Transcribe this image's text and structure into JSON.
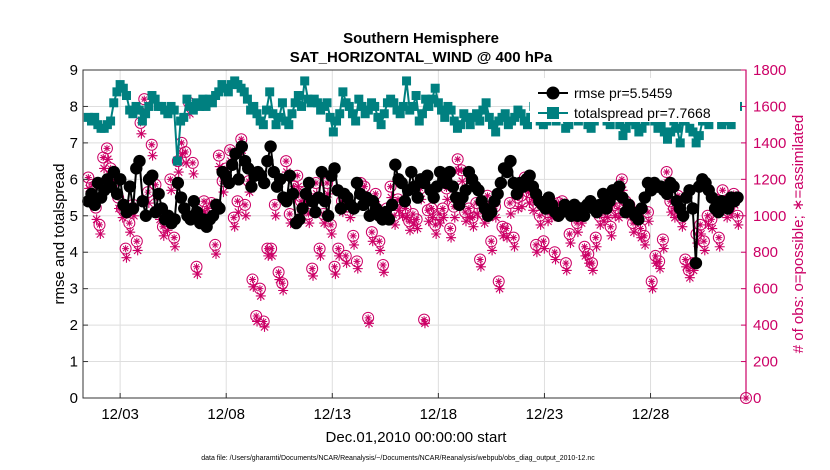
{
  "chart_data": {
    "type": "line",
    "title": "Southern Hemisphere",
    "subtitle": "SAT_HORIZONTAL_WIND @ 400 hPa",
    "xlabel": "Dec.01,2010 00:00:00 start",
    "ylabel_left": "rmse and totalspread",
    "ylabel_right": "# of obs: o=possible; ∗=assimilated",
    "footnote": "data file: /Users/gharamti/Documents/NCAR/Reanalysis/~/Documents/NCAR/Reanalysis/webpub/obs_diag_output_2010-12.nc",
    "xlim": [
      1.25,
      32.5
    ],
    "ylim_left": [
      0,
      9
    ],
    "ylim_right": [
      0,
      1800
    ],
    "x_ticks": [
      3,
      8,
      13,
      18,
      23,
      28
    ],
    "x_tick_labels": [
      "12/03",
      "12/08",
      "12/13",
      "12/18",
      "12/23",
      "12/28"
    ],
    "y_ticks_left": [
      "0",
      "1",
      "2",
      "3",
      "4",
      "5",
      "6",
      "7",
      "8",
      "9"
    ],
    "y_ticks_right": [
      "0",
      "200",
      "400",
      "600",
      "800",
      "1000",
      "1200",
      "1400",
      "1600",
      "1800"
    ],
    "grid": true,
    "legend_position": "top-right",
    "colors": {
      "rmse": "#000000",
      "totalspread": "#008080",
      "obs": "#cc0066",
      "grid": "#dedede"
    },
    "series": [
      {
        "name": "rmse",
        "legend_label": "rmse pr=5.5459",
        "axis": "left",
        "values": [
          5.4,
          5.6,
          5.3,
          5.9,
          5.5,
          5.7,
          6.0,
          5.8,
          6.2,
          5.6,
          6.0,
          5.3,
          5.1,
          5.8,
          5.2,
          6.3,
          6.5,
          5.4,
          5.0,
          6.0,
          6.1,
          5.1,
          5.6,
          5.2,
          4.9,
          5.0,
          4.8,
          4.9,
          5.9,
          5.5,
          5.2,
          5.0,
          4.9,
          5.4,
          5.1,
          4.8,
          4.9,
          4.7,
          4.9,
          5.0,
          5.3,
          5.2,
          6.2,
          6.1,
          5.9,
          6.4,
          6.7,
          6.0,
          6.9,
          6.5,
          6.3,
          5.8,
          6.1,
          6.2,
          6.1,
          5.9,
          6.5,
          6.9,
          6.2,
          5.8,
          6.0,
          5.5,
          5.4,
          6.1,
          5.6,
          4.8,
          4.9,
          5.2,
          5.6,
          5.9,
          5.4,
          5.1,
          5.5,
          6.2,
          5.4,
          5.0,
          6.1,
          6.3,
          5.7,
          5.2,
          5.6,
          5.5,
          5.3,
          5.2,
          5.9,
          5.6,
          5.3,
          5.5,
          5.0,
          5.4,
          5.2,
          5.0,
          4.9,
          5.1,
          4.9,
          5.3,
          6.4,
          6.0,
          5.9,
          5.4,
          5.7,
          6.2,
          5.8,
          5.5,
          6.0,
          5.9,
          6.1,
          5.7,
          5.5,
          5.8,
          6.2,
          6.0,
          5.9,
          6.2,
          5.8,
          5.5,
          5.3,
          5.5,
          5.7,
          6.2,
          6.0,
          5.8,
          5.7,
          5.4,
          5.2,
          5.0,
          5.1,
          5.4,
          5.6,
          5.9,
          6.3,
          6.2,
          6.5,
          5.9,
          5.6,
          5.9,
          5.8,
          6.0,
          6.1,
          5.8,
          5.6,
          5.4,
          5.3,
          5.2,
          5.5,
          5.3,
          5.1,
          5.0,
          5.1,
          5.3,
          5.2,
          5.0,
          5.3,
          5.0,
          5.2,
          5.0,
          5.3,
          5.4,
          5.2,
          5.1,
          5.3,
          5.6,
          5.2,
          5.4,
          5.7,
          5.6,
          5.8,
          5.5,
          5.1,
          5.3,
          5.1,
          5.0,
          4.9,
          5.2,
          5.5,
          5.9,
          5.7,
          5.9,
          5.8,
          5.8,
          5.7,
          5.6,
          5.9,
          5.8,
          5.4,
          5.2,
          5.0,
          5.5,
          5.7,
          5.2,
          3.7,
          5.8,
          6.0,
          5.9,
          5.7,
          5.5,
          5.2,
          5.1,
          5.4,
          5.3,
          5.2,
          5.5,
          5.4,
          5.5
        ]
      },
      {
        "name": "totalspread",
        "legend_label": "totalspread pr=7.7668",
        "axis": "left",
        "values": [
          7.7,
          7.6,
          7.7,
          7.5,
          7.4,
          7.4,
          7.5,
          7.6,
          8.1,
          8.4,
          8.6,
          8.5,
          8.3,
          7.9,
          7.8,
          8.0,
          7.9,
          7.6,
          7.8,
          8.0,
          8.3,
          8.2,
          8.0,
          8.0,
          7.9,
          7.8,
          8.0,
          7.9,
          6.5,
          7.6,
          7.7,
          8.2,
          8.0,
          7.9,
          8.1,
          8.0,
          8.2,
          8.0,
          8.2,
          8.1,
          8.3,
          8.4,
          8.6,
          8.5,
          8.4,
          8.6,
          8.7,
          8.6,
          8.5,
          8.4,
          8.2,
          7.9,
          8.0,
          7.8,
          7.6,
          7.5,
          7.9,
          8.4,
          7.8,
          7.5,
          7.7,
          8.1,
          7.6,
          7.5,
          7.8,
          8.1,
          8.3,
          8.0,
          8.7,
          8.2,
          8.1,
          8.2,
          8.1,
          7.9,
          8.0,
          8.1,
          7.7,
          7.3,
          7.6,
          7.8,
          8.4,
          8.1,
          8.0,
          7.8,
          7.6,
          8.2,
          8.0,
          7.8,
          7.9,
          8.1,
          8.0,
          7.7,
          7.5,
          7.8,
          8.1,
          8.2,
          8.1,
          7.9,
          7.8,
          8.0,
          8.7,
          7.9,
          8.0,
          8.3,
          7.6,
          7.8,
          8.2,
          8.0,
          8.2,
          8.5,
          8.1,
          7.9,
          7.7,
          8.0,
          7.9,
          7.6,
          7.4,
          7.5,
          7.8,
          7.7,
          7.5,
          7.7,
          7.8,
          7.6,
          7.9,
          8.1,
          7.7,
          7.5,
          7.3,
          7.6,
          7.7,
          7.8,
          7.5,
          7.6,
          7.7,
          7.9,
          7.8,
          7.6,
          7.5,
          7.7,
          8.0,
          7.8,
          7.6,
          7.5,
          7.6,
          7.8,
          7.7,
          7.6,
          7.9,
          7.7,
          7.4,
          7.5,
          7.7,
          7.8,
          7.6,
          7.9,
          7.7,
          7.5,
          7.4,
          7.6,
          7.8,
          8.0,
          7.8,
          7.6,
          7.5,
          7.7,
          7.9,
          7.5,
          7.2,
          7.4,
          7.6,
          7.8,
          7.5,
          7.3,
          7.4,
          7.6,
          7.8,
          7.9,
          7.6,
          7.4,
          7.5,
          7.3,
          7.1,
          7.3,
          7.6,
          7.4,
          7.0,
          7.6,
          7.8,
          7.4,
          7.3,
          7.0,
          7.2,
          7.6,
          7.8,
          7.5,
          8.6,
          8.0,
          7.7,
          7.5,
          7.6,
          7.7,
          7.5,
          7.8,
          8.0
        ]
      },
      {
        "name": "obs_possible",
        "marker": "circle",
        "axis": "right",
        "values": [
          1210,
          1170,
          1045,
          950,
          1320,
          1370,
          1260,
          1190,
          1100,
          1040,
          820,
          960,
          1060,
          860,
          1510,
          1640,
          1130,
          1390,
          1170,
          1030,
          940,
          970,
          1200,
          880,
          1300,
          1400,
          1350,
          1620,
          1290,
          720,
          1010,
          1080,
          1040,
          1070,
          840,
          1330,
          1190,
          1260,
          1360,
          990,
          1080,
          1420,
          1060,
          1190,
          650,
          450,
          600,
          420,
          820,
          820,
          1060,
          690,
          630,
          1300,
          1010,
          1160,
          1220,
          1080,
          1130,
          1010,
          710,
          1180,
          820,
          1010,
          1180,
          950,
          720,
          820,
          1080,
          780,
          1050,
          890,
          750,
          1180,
          1160,
          440,
          910,
          1120,
          860,
          730,
          1040,
          1160,
          1000,
          1090,
          1060,
          1040,
          970,
          1010,
          980,
          1150,
          430,
          1030,
          1040,
          950,
          1010,
          1040,
          1150,
          930,
          1050,
          1310,
          1250,
          1020,
          1040,
          990,
          1070,
          760,
          1010,
          1110,
          860,
          1050,
          640,
          940,
          930,
          1070,
          880,
          1100,
          1110,
          1210,
          1130,
          1090,
          840,
          1000,
          860,
          1020,
          1040,
          800,
          1070,
          1080,
          740,
          900,
          1040,
          960,
          1010,
          830,
          790,
          740,
          880,
          1000,
          1020,
          1040,
          940,
          1060,
          1040,
          1200,
          1080,
          1060,
          960,
          1020,
          930,
          890,
          1020,
          640,
          780,
          750,
          870,
          1240,
          1080,
          1040,
          1110,
          990,
          760,
          700,
          740,
          900,
          950,
          860,
          1000,
          980,
          1090,
          880,
          1140,
          1050,
          1070,
          1120,
          1000
        ]
      },
      {
        "name": "obs_assimilated",
        "marker": "asterisk",
        "axis": "right",
        "values": [
          1150,
          1100,
          980,
          900,
          1260,
          1310,
          1200,
          1130,
          1040,
          990,
          770,
          910,
          1000,
          810,
          1450,
          1580,
          1070,
          1330,
          1110,
          980,
          890,
          920,
          1140,
          830,
          1240,
          1340,
          1290,
          1560,
          1230,
          680,
          960,
          1020,
          990,
          1010,
          790,
          1270,
          1130,
          1200,
          1300,
          940,
          1020,
          1360,
          1000,
          1130,
          610,
          420,
          560,
          390,
          780,
          780,
          1000,
          650,
          590,
          1240,
          960,
          1100,
          1160,
          1020,
          1070,
          960,
          670,
          1120,
          780,
          960,
          1120,
          900,
          680,
          780,
          1020,
          740,
          990,
          840,
          710,
          1120,
          1100,
          410,
          860,
          1060,
          810,
          690,
          980,
          1100,
          950,
          1030,
          1000,
          990,
          920,
          960,
          930,
          1090,
          410,
          970,
          990,
          900,
          960,
          990,
          1090,
          880,
          990,
          1250,
          1190,
          970,
          990,
          940,
          1010,
          720,
          960,
          1050,
          810,
          990,
          600,
          890,
          880,
          1010,
          830,
          1040,
          1050,
          1150,
          1070,
          1030,
          800,
          950,
          820,
          970,
          990,
          760,
          1010,
          1020,
          700,
          850,
          990,
          910,
          960,
          780,
          740,
          700,
          830,
          950,
          970,
          990,
          890,
          1000,
          990,
          1140,
          1020,
          1000,
          910,
          970,
          880,
          840,
          970,
          600,
          740,
          710,
          820,
          1180,
          1020,
          990,
          1050,
          940,
          720,
          660,
          700,
          850,
          900,
          810,
          950,
          930,
          1030,
          830,
          1080,
          990,
          1010,
          1060,
          950
        ]
      }
    ],
    "extra_points": [
      {
        "series": "obs_possible",
        "x": 32.5,
        "y": 0
      }
    ]
  }
}
